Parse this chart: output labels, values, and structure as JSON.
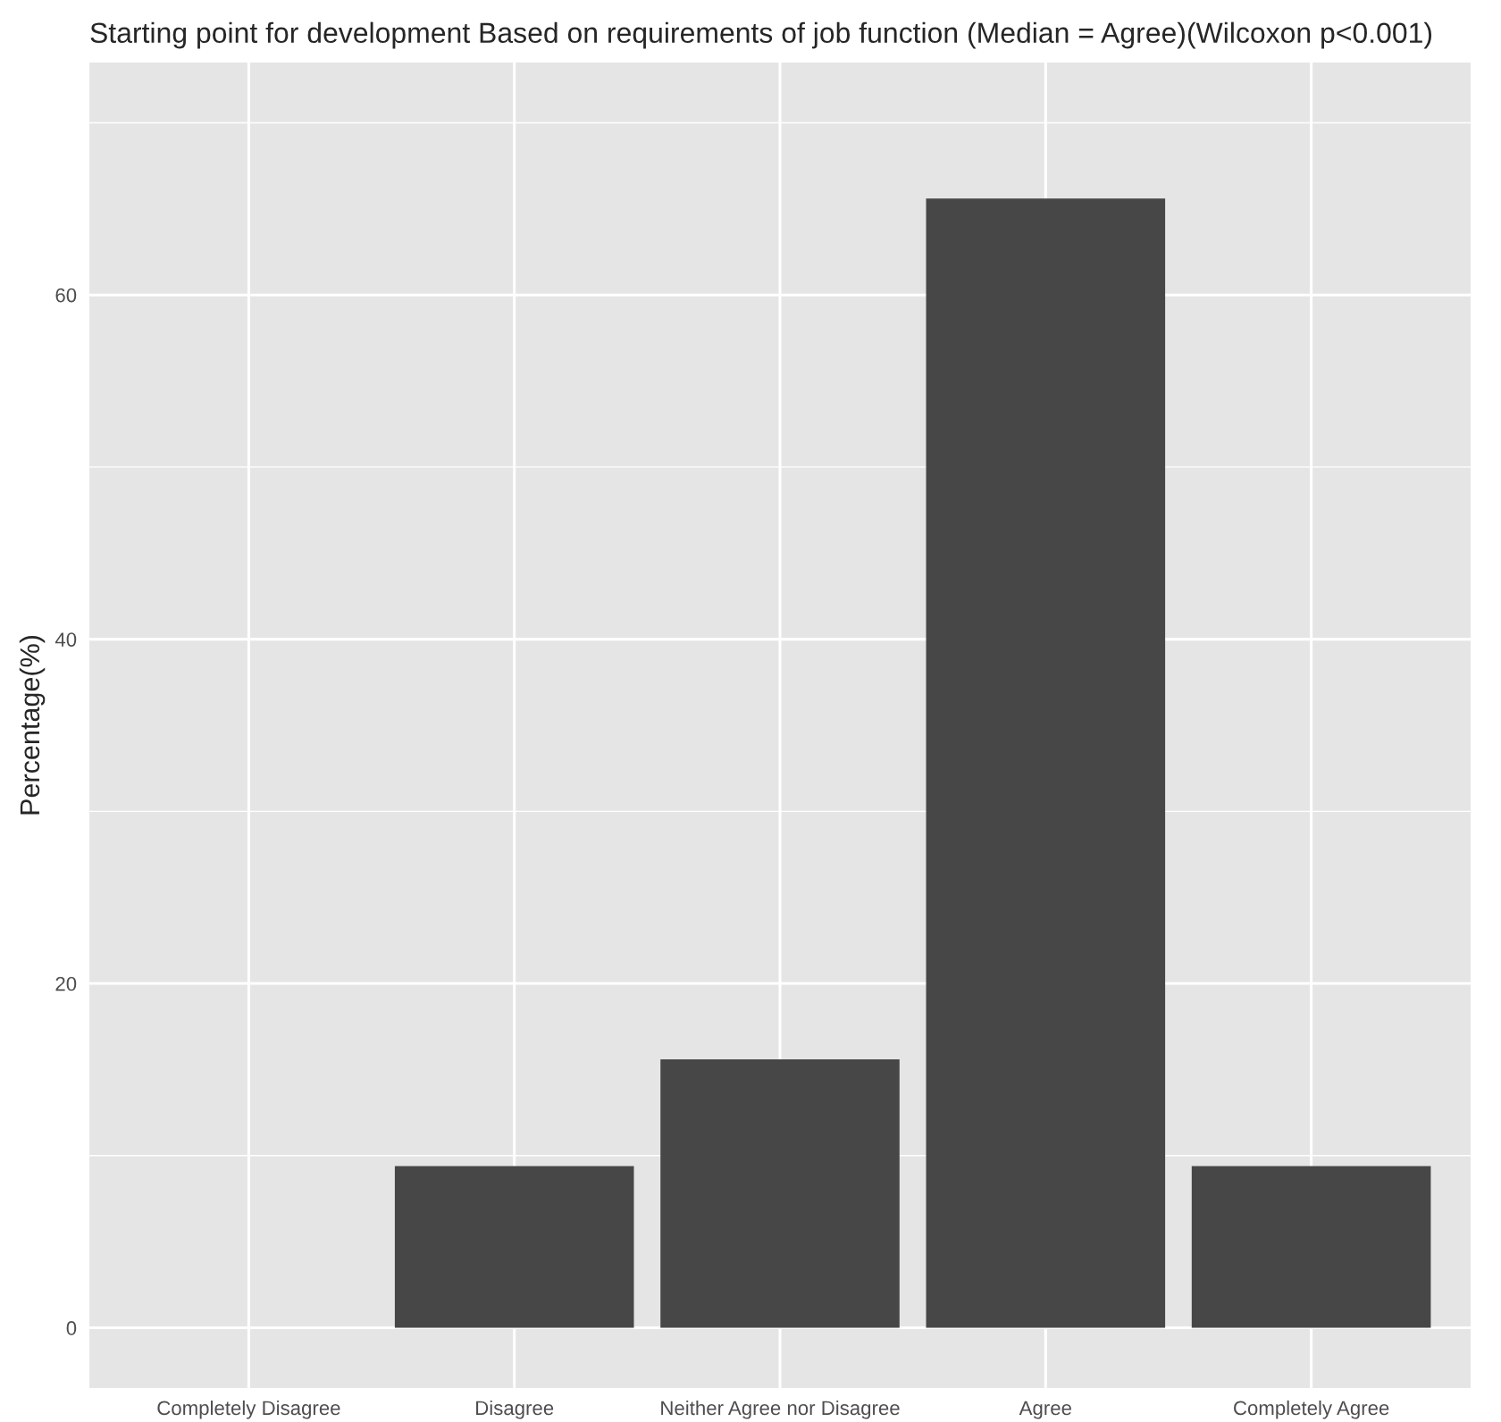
{
  "chart_data": {
    "type": "bar",
    "title": "Starting point for development Based on requirements of job function (Median = Agree)(Wilcoxon p<0.001)",
    "ylabel": "Percentage(%)",
    "categories": [
      "Completely Disagree",
      "Disagree",
      "Neither Agree nor Disagree",
      "Agree",
      "Completely Agree"
    ],
    "values": [
      0,
      9.4,
      15.6,
      65.6,
      9.4
    ],
    "color": "#474747",
    "ylim": [
      -3.5,
      73.5
    ],
    "yticks": [
      0,
      20,
      40,
      60
    ],
    "grid": true
  }
}
